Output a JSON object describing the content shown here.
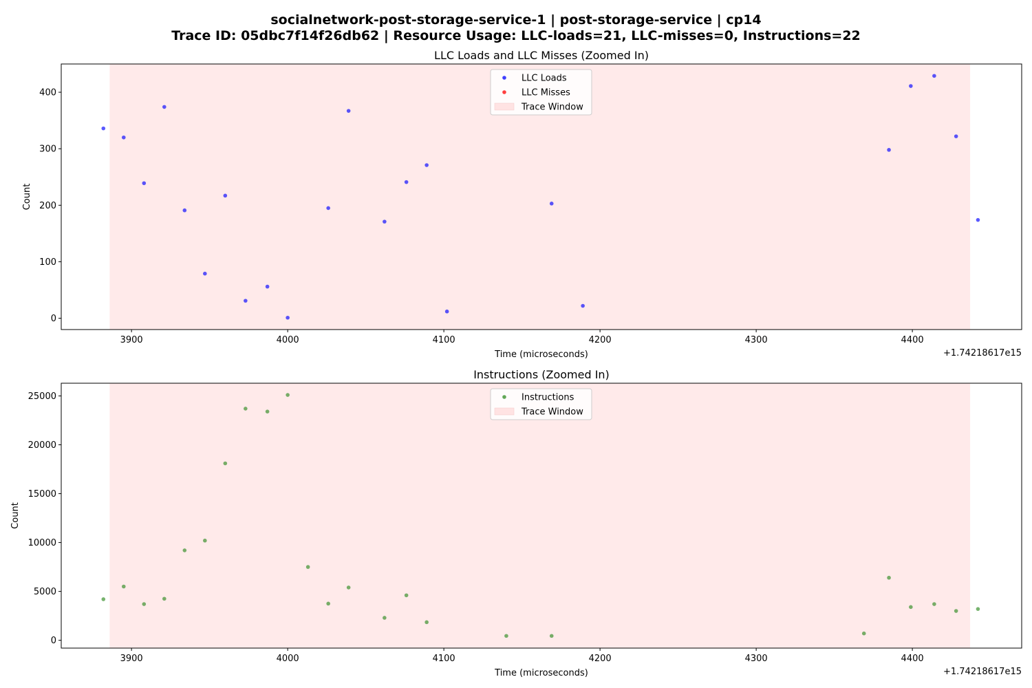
{
  "figure": {
    "suptitle_line1": "socialnetwork-post-storage-service-1 | post-storage-service | cp14",
    "suptitle_line2": "Trace ID: 05dbc7f14f26db62 | Resource Usage: LLC-loads=21, LLC-misses=0, Instructions=22"
  },
  "colors": {
    "llc_loads": "#0000ff",
    "llc_misses": "#ff0000",
    "instructions": "#2e8b20",
    "trace_window": "#ffe3e3"
  },
  "chart_data": [
    {
      "type": "scatter",
      "title": "LLC Loads and LLC Misses (Zoomed In)",
      "xlabel": "Time (microseconds)",
      "ylabel": "Count",
      "x_offset_label": "+1.74218617e15",
      "xlim": [
        3855,
        4470
      ],
      "ylim": [
        -20,
        450
      ],
      "xticks": [
        3900,
        4000,
        4100,
        4200,
        4300,
        4400
      ],
      "yticks": [
        0,
        100,
        200,
        300,
        400
      ],
      "grid": false,
      "legend_position": "top-center",
      "trace_window": {
        "label": "Trace Window",
        "x_start": 3886,
        "x_end": 4437
      },
      "series": [
        {
          "name": "LLC Loads",
          "color": "#0000ff",
          "points": [
            [
              3882,
              336
            ],
            [
              3895,
              320
            ],
            [
              3908,
              239
            ],
            [
              3921,
              374
            ],
            [
              3934,
              191
            ],
            [
              3947,
              79
            ],
            [
              3960,
              217
            ],
            [
              3973,
              31
            ],
            [
              3987,
              56
            ],
            [
              4000,
              1
            ],
            [
              4026,
              195
            ],
            [
              4039,
              367
            ],
            [
              4062,
              171
            ],
            [
              4076,
              241
            ],
            [
              4089,
              271
            ],
            [
              4102,
              12
            ],
            [
              4169,
              203
            ],
            [
              4189,
              22
            ],
            [
              4385,
              298
            ],
            [
              4399,
              411
            ],
            [
              4414,
              429
            ],
            [
              4428,
              322
            ],
            [
              4442,
              174
            ]
          ]
        },
        {
          "name": "LLC Misses",
          "color": "#ff0000",
          "points": []
        }
      ]
    },
    {
      "type": "scatter",
      "title": "Instructions (Zoomed In)",
      "xlabel": "Time (microseconds)",
      "ylabel": "Count",
      "x_offset_label": "+1.74218617e15",
      "xlim": [
        3855,
        4470
      ],
      "ylim": [
        -800,
        26300
      ],
      "xticks": [
        3900,
        4000,
        4100,
        4200,
        4300,
        4400
      ],
      "yticks": [
        0,
        5000,
        10000,
        15000,
        20000,
        25000
      ],
      "grid": false,
      "legend_position": "top-center",
      "trace_window": {
        "label": "Trace Window",
        "x_start": 3886,
        "x_end": 4437
      },
      "series": [
        {
          "name": "Instructions",
          "color": "#2e8b20",
          "points": [
            [
              3882,
              4200
            ],
            [
              3895,
              5500
            ],
            [
              3908,
              3700
            ],
            [
              3921,
              4250
            ],
            [
              3934,
              9200
            ],
            [
              3947,
              10200
            ],
            [
              3960,
              18100
            ],
            [
              3973,
              23700
            ],
            [
              3987,
              23400
            ],
            [
              4000,
              25100
            ],
            [
              4013,
              7500
            ],
            [
              4026,
              3750
            ],
            [
              4039,
              5400
            ],
            [
              4062,
              2300
            ],
            [
              4076,
              4600
            ],
            [
              4089,
              1850
            ],
            [
              4140,
              450
            ],
            [
              4169,
              450
            ],
            [
              4369,
              700
            ],
            [
              4385,
              6400
            ],
            [
              4399,
              3400
            ],
            [
              4414,
              3700
            ],
            [
              4428,
              3000
            ],
            [
              4442,
              3200
            ]
          ]
        }
      ]
    }
  ]
}
